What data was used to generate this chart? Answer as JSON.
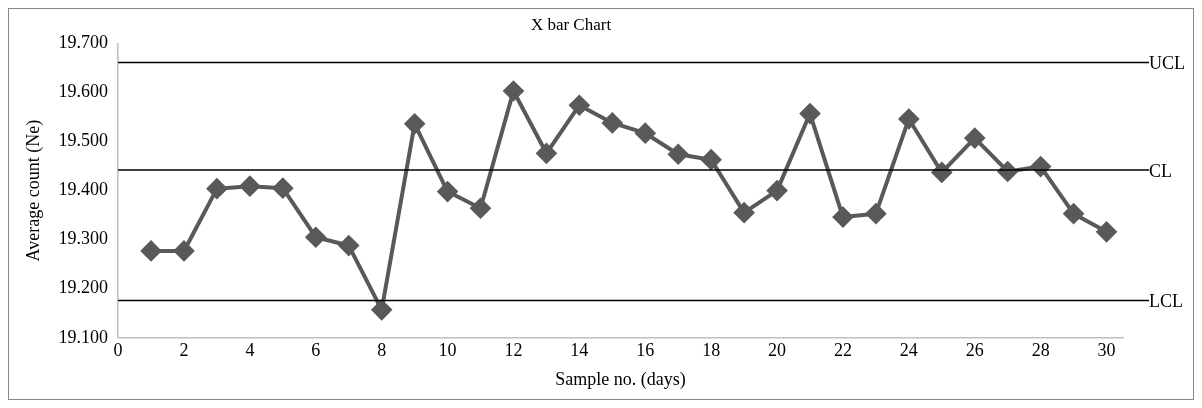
{
  "chart_data": {
    "type": "line",
    "title": "X bar Chart",
    "xlabel": "Sample no. (days)",
    "ylabel": "Average count (Ne)",
    "x": [
      1,
      2,
      3,
      4,
      5,
      6,
      7,
      8,
      9,
      10,
      11,
      12,
      13,
      14,
      15,
      16,
      17,
      18,
      19,
      20,
      21,
      22,
      23,
      24,
      25,
      26,
      27,
      28,
      29,
      30
    ],
    "series": [
      {
        "color": "#595959",
        "values": [
          19.277,
          19.277,
          19.404,
          19.409,
          19.405,
          19.305,
          19.288,
          19.157,
          19.536,
          19.398,
          19.364,
          19.603,
          19.476,
          19.574,
          19.538,
          19.517,
          19.474,
          19.463,
          19.355,
          19.4,
          19.557,
          19.346,
          19.353,
          19.546,
          19.437,
          19.507,
          19.439,
          19.449,
          19.353,
          19.316
        ]
      }
    ],
    "xlim": [
      0,
      30.5
    ],
    "xticks": [
      0,
      2,
      4,
      6,
      8,
      10,
      12,
      14,
      16,
      18,
      20,
      22,
      24,
      26,
      28,
      30
    ],
    "ylim": [
      19.1,
      19.7
    ],
    "yticks": [
      {
        "value": 19.1,
        "label": "19.100"
      },
      {
        "value": 19.2,
        "label": "19.200"
      },
      {
        "value": 19.3,
        "label": "19.300"
      },
      {
        "value": 19.4,
        "label": "19.400"
      },
      {
        "value": 19.5,
        "label": "19.500"
      },
      {
        "value": 19.6,
        "label": "19.600"
      },
      {
        "value": 19.7,
        "label": "19.700"
      }
    ],
    "ref_lines": [
      {
        "axis": "y",
        "value": 19.661,
        "label": "UCL",
        "color": "#000000"
      },
      {
        "axis": "y",
        "value": 19.442,
        "label": "CL",
        "color": "#000000"
      },
      {
        "axis": "y",
        "value": 19.176,
        "label": "LCL",
        "color": "#000000"
      }
    ],
    "grid": false,
    "legend": false,
    "marker": "diamond",
    "line_style": "solid"
  }
}
